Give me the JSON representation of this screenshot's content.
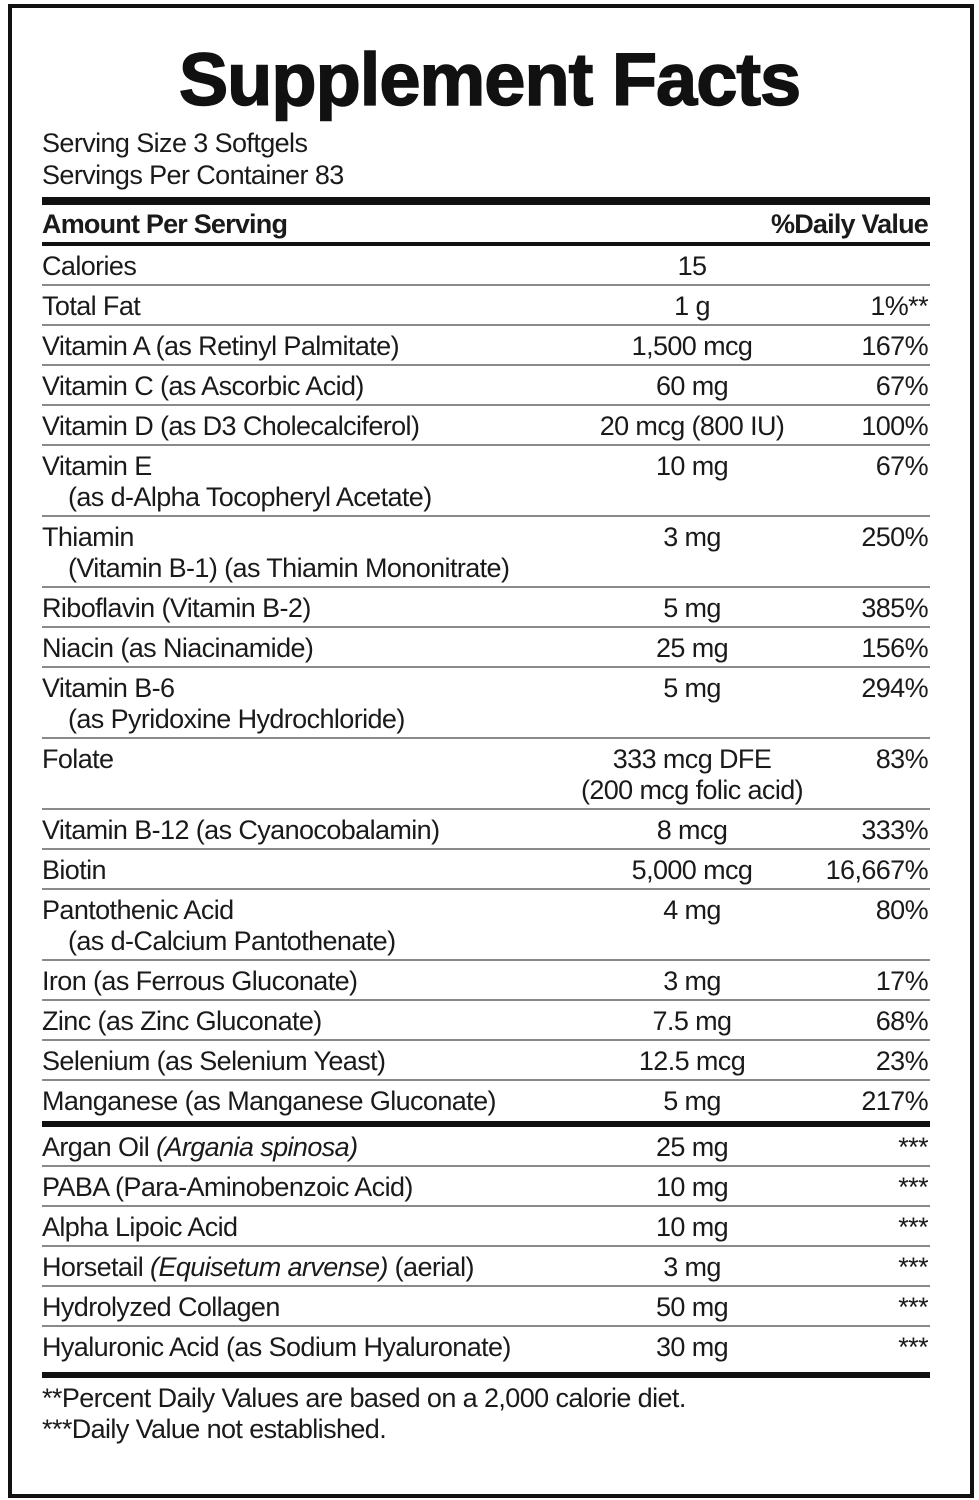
{
  "title": "Supplement Facts",
  "serving_size": "Serving Size 3 Softgels",
  "servings_per_container": "Servings Per Container 83",
  "header": {
    "amount_per_serving": "Amount Per Serving",
    "daily_value": "%Daily Value"
  },
  "groups": [
    [
      {
        "name": "Calories",
        "amount": "15",
        "dv": ""
      },
      {
        "name": "Total Fat",
        "amount": "1 g",
        "dv": "1%**"
      },
      {
        "name": "Vitamin A (as Retinyl Palmitate)",
        "amount": "1,500 mcg",
        "dv": "167%"
      },
      {
        "name": "Vitamin C (as Ascorbic Acid)",
        "amount": "60 mg",
        "dv": "67%"
      },
      {
        "name": "Vitamin D (as D3 Cholecalciferol)",
        "amount": "20 mcg (800 IU)",
        "dv": "100%"
      },
      {
        "name": "Vitamin E",
        "name2": "(as d-Alpha Tocopheryl Acetate)",
        "amount": "10 mg",
        "dv": "67%"
      },
      {
        "name": "Thiamin",
        "name2": "(Vitamin B-1) (as Thiamin Mononitrate)",
        "amount": "3 mg",
        "dv": "250%"
      },
      {
        "name": "Riboflavin (Vitamin B-2)",
        "amount": "5 mg",
        "dv": "385%"
      },
      {
        "name": "Niacin (as Niacinamide)",
        "amount": "25 mg",
        "dv": "156%"
      },
      {
        "name": "Vitamin B-6",
        "name2": "(as Pyridoxine Hydrochloride)",
        "amount": "5 mg",
        "dv": "294%"
      },
      {
        "name": "Folate",
        "amount": "333 mcg DFE",
        "amount2": "(200 mcg folic acid)",
        "dv": "83%"
      },
      {
        "name": "Vitamin B-12 (as Cyanocobalamin)",
        "amount": "8 mcg",
        "dv": "333%"
      },
      {
        "name": "Biotin",
        "amount": "5,000 mcg",
        "dv": "16,667%"
      },
      {
        "name": "Pantothenic Acid",
        "name2": "(as d-Calcium Pantothenate)",
        "amount": "4 mg",
        "dv": "80%"
      },
      {
        "name": "Iron (as Ferrous Gluconate)",
        "amount": "3 mg",
        "dv": "17%"
      },
      {
        "name": "Zinc (as Zinc Gluconate)",
        "amount": "7.5 mg",
        "dv": "68%"
      },
      {
        "name": "Selenium (as Selenium Yeast)",
        "amount": "12.5 mcg",
        "dv": "23%"
      },
      {
        "name": "Manganese (as Manganese Gluconate)",
        "amount": "5 mg",
        "dv": "217%"
      }
    ],
    [
      {
        "name": "Argan Oil ",
        "name_italic": "(Argania spinosa)",
        "amount": "25 mg",
        "dv": "***"
      },
      {
        "name": "PABA (Para-Aminobenzoic Acid)",
        "amount": "10 mg",
        "dv": "***"
      },
      {
        "name": "Alpha Lipoic Acid",
        "amount": "10 mg",
        "dv": "***"
      },
      {
        "name": "Horsetail ",
        "name_italic": "(Equisetum arvense)",
        "name_suffix": " (aerial)",
        "amount": "3 mg",
        "dv": "***"
      },
      {
        "name": "Hydrolyzed Collagen",
        "amount": "50 mg",
        "dv": "***"
      },
      {
        "name": "Hyaluronic Acid (as Sodium Hyaluronate)",
        "amount": "30 mg",
        "dv": "***"
      }
    ]
  ],
  "footnotes": [
    "**Percent Daily Values are based on a 2,000 calorie diet.",
    "***Daily Value not established."
  ]
}
